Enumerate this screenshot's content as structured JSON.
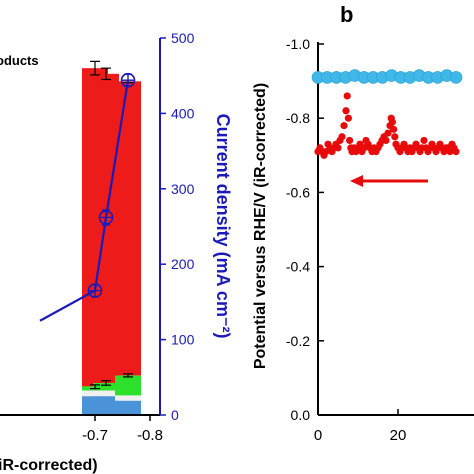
{
  "panel_label_b": "b",
  "chart_data": [
    {
      "type": "bar",
      "legend_text": "oducts",
      "xlabel": "iR-corrected)",
      "x_ticks": [
        "-0.7",
        "-0.8"
      ],
      "x_range": [
        -0.6,
        -0.8
      ],
      "left_ylim": [
        0,
        100
      ],
      "ylabel_right": "Current density (mA cm⁻²)",
      "right_ylim": [
        0,
        500
      ],
      "right_ticks": [
        "0",
        "100",
        "200",
        "300",
        "400",
        "500"
      ],
      "stacks": [
        {
          "x": -0.7,
          "segments": [
            {
              "color": "#4a93d8",
              "bottom": 0,
              "top": 5
            },
            {
              "color": "#f0f0f0",
              "bottom": 5,
              "top": 6.5
            },
            {
              "color": "#2ce02c",
              "bottom": 6.5,
              "top": 7.6
            },
            {
              "color": "#ee1b1b",
              "bottom": 7.6,
              "top": 92
            }
          ],
          "errors": [
            {
              "value": 7.5,
              "err": 0.5
            },
            {
              "value": 92,
              "err": 1.8
            }
          ]
        },
        {
          "x": -0.72,
          "segments": [
            {
              "color": "#4a93d8",
              "bottom": 0,
              "top": 5
            },
            {
              "color": "#f0f0f0",
              "bottom": 5,
              "top": 6.5
            },
            {
              "color": "#2ce02c",
              "bottom": 6.5,
              "top": 8.5
            },
            {
              "color": "#ee1b1b",
              "bottom": 8.5,
              "top": 90.5
            }
          ],
          "errors": [
            {
              "value": 8.5,
              "err": 0.6
            },
            {
              "value": 90.5,
              "err": 1.5
            }
          ]
        },
        {
          "x": -0.76,
          "segments": [
            {
              "color": "#4a93d8",
              "bottom": 0,
              "top": 3.8
            },
            {
              "color": "#f0f0f0",
              "bottom": 3.8,
              "top": 5.2
            },
            {
              "color": "#2ce02c",
              "bottom": 5.2,
              "top": 10.5
            },
            {
              "color": "#ee1b1b",
              "bottom": 10.5,
              "top": 88.5
            }
          ],
          "errors": [
            {
              "value": 10.5,
              "err": 0.4
            },
            {
              "value": 88.5,
              "err": 0
            }
          ]
        }
      ],
      "current_density": {
        "color": "#1a1ab8",
        "x": [
          -0.6,
          -0.7,
          -0.72,
          -0.76
        ],
        "y": [
          125,
          165,
          262,
          444
        ],
        "err": [
          0,
          8,
          10,
          8
        ]
      }
    },
    {
      "type": "scatter",
      "ylabel": "Potential versus RHE/V (iR-corrected)",
      "xlim": [
        0,
        60
      ],
      "x_ticks": [
        "0",
        "20"
      ],
      "ylim": [
        0,
        -1.0
      ],
      "y_ticks": [
        "0.0",
        "-0.2",
        "-0.4",
        "-0.6",
        "-0.8",
        "-1.0"
      ],
      "series": [
        {
          "color": "#3fb7e8",
          "x": [
            0,
            2.3,
            4.6,
            6.9,
            9.2,
            11.5,
            13.8,
            16.1,
            18.4,
            20.7,
            23,
            25.3,
            27.6,
            29.9,
            32.2,
            34.5
          ],
          "y": [
            -0.91,
            -0.91,
            -0.91,
            -0.91,
            -0.915,
            -0.91,
            -0.91,
            -0.91,
            -0.915,
            -0.91,
            -0.91,
            -0.915,
            -0.91,
            -0.91,
            -0.915,
            -0.91
          ]
        },
        {
          "color": "#e80b0b",
          "x": [
            0,
            0.5,
            1,
            1.5,
            2,
            2.5,
            3,
            3.5,
            4,
            4.5,
            5,
            5.5,
            6,
            6.5,
            7,
            7.3,
            7.6,
            7.9,
            8.2,
            8.5,
            9,
            9.5,
            10,
            10.5,
            11,
            11.5,
            12,
            12.5,
            13,
            13.5,
            14,
            14.5,
            15,
            15.5,
            16,
            16.5,
            17,
            17.5,
            18,
            18.3,
            18.6,
            18.9,
            19.2,
            19.5,
            20,
            20.5,
            21,
            21.5,
            22,
            22.5,
            23,
            23.5,
            24,
            24.5,
            25,
            25.5,
            26,
            26.5,
            27,
            27.5,
            28,
            28.5,
            29,
            29.5,
            30,
            30.5,
            31,
            31.5,
            32,
            32.5,
            33,
            33.5,
            34,
            34.5
          ],
          "y": [
            -0.71,
            -0.72,
            -0.71,
            -0.7,
            -0.71,
            -0.73,
            -0.72,
            -0.71,
            -0.72,
            -0.73,
            -0.72,
            -0.74,
            -0.75,
            -0.78,
            -0.82,
            -0.86,
            -0.8,
            -0.74,
            -0.72,
            -0.71,
            -0.72,
            -0.71,
            -0.72,
            -0.73,
            -0.71,
            -0.72,
            -0.74,
            -0.73,
            -0.72,
            -0.71,
            -0.72,
            -0.71,
            -0.72,
            -0.73,
            -0.74,
            -0.75,
            -0.74,
            -0.76,
            -0.78,
            -0.8,
            -0.79,
            -0.77,
            -0.75,
            -0.73,
            -0.72,
            -0.71,
            -0.72,
            -0.73,
            -0.72,
            -0.71,
            -0.72,
            -0.71,
            -0.72,
            -0.73,
            -0.72,
            -0.71,
            -0.72,
            -0.74,
            -0.72,
            -0.71,
            -0.72,
            -0.73,
            -0.72,
            -0.71,
            -0.72,
            -0.73,
            -0.72,
            -0.71,
            -0.72,
            -0.72,
            -0.71,
            -0.73,
            -0.72,
            -0.71
          ]
        }
      ],
      "arrow": {
        "color": "#e80b0b",
        "direction": "left"
      }
    }
  ]
}
